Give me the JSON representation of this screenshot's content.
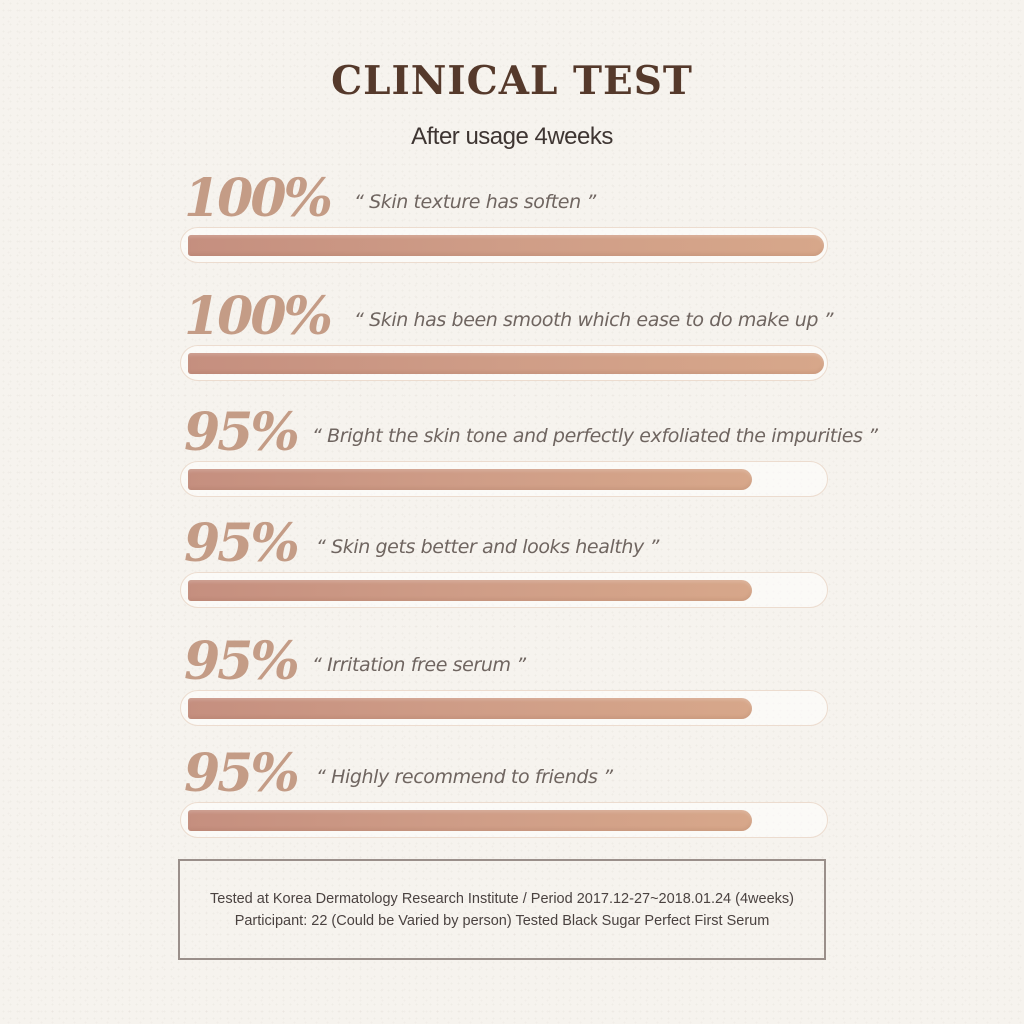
{
  "header": {
    "title": "CLINICAL TEST",
    "subtitle": "After usage 4weeks"
  },
  "chart_data": {
    "type": "bar",
    "orientation": "horizontal",
    "unit": "%",
    "xlim": [
      0,
      100
    ],
    "categories": [
      "“ Skin texture has soften ”",
      "“ Skin has been smooth which ease to do make up ”",
      "“ Bright the skin tone and perfectly exfoliated the impurities ”",
      "“ Skin gets better and looks healthy ”",
      "“ Irritation free serum ”",
      "“ Highly recommend to friends ”"
    ],
    "values": [
      100,
      100,
      95,
      95,
      95,
      95
    ],
    "value_labels": [
      "100%",
      "100%",
      "95%",
      "95%",
      "95%",
      "95%"
    ]
  },
  "footnote": {
    "line1": "Tested at Korea Dermatology Research Institute / Period 2017.12-27~2018.01.24 (4weeks)",
    "line2": "Participant: 22 (Could be Varied by person) Tested Black Sugar Perfect First Serum"
  },
  "colors": {
    "title": "#55392b",
    "percent": "#c49c86",
    "bar_fill": "#cf9d87",
    "bar_track_border": "#ecdccf"
  }
}
